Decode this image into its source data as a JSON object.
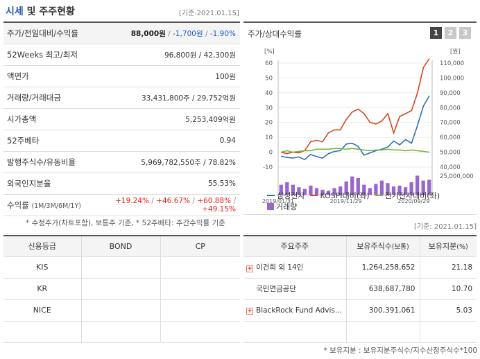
{
  "header": {
    "title_em": "시세",
    "title_rest": " 및 주주현황",
    "basedate": "[기준:2021.01.15]"
  },
  "info": {
    "rows": [
      {
        "key": "주가/전일대비/수익률"
      },
      {
        "key": "52Weeks 최고/최저",
        "value": "96,800원 / 42,300원"
      },
      {
        "key": "액면가",
        "value": "100원"
      },
      {
        "key": "거래량/거래대금",
        "value": "33,431,800주 / 29,752억원"
      },
      {
        "key": "시가총액",
        "value": "5,253,409억원"
      },
      {
        "key": "52주베타",
        "value": "0.94"
      },
      {
        "key": "발행주식수/유동비율",
        "value": "5,969,782,550주 / 78.82%"
      },
      {
        "key": "외국인지분율",
        "value": "55.53%"
      },
      {
        "key": "수익률",
        "key_small": "(1M/3M/6M/1Y)"
      }
    ],
    "price": "88,000원",
    "change": "-1,700원",
    "change_rate": "-1.90%",
    "returns": [
      "+19.24%",
      "+46.67%",
      "+60.88%",
      "+49.15%"
    ],
    "slash": " / "
  },
  "chart_panel": {
    "title": "주가/상대수익률",
    "pages": [
      "1",
      "2",
      "3"
    ],
    "active_page": "1"
  },
  "chart_data": {
    "type": "line",
    "left_unit": "[%]",
    "right_unit": "[원]",
    "left_ticks": [
      60,
      50,
      40,
      30,
      20,
      10,
      0,
      -10
    ],
    "right_ticks": [
      "110,000",
      "100,000",
      "90,000",
      "80,000",
      "70,000",
      "60,000",
      "50,000",
      "40,000"
    ],
    "volume_tick": "25,000,000",
    "ylim_left": [
      -10,
      60
    ],
    "ylim_right": [
      40000,
      110000
    ],
    "x_tick_labels": [
      "2019/01/31",
      "2019/11/29",
      "2020/09/29"
    ],
    "x_tick_positions": [
      0,
      0.44,
      0.88
    ],
    "series": [
      {
        "name": "삼성전자",
        "axis": "right",
        "color": "#2a6ebd",
        "values": [
          47300,
          46500,
          46000,
          46800,
          45000,
          48500,
          47000,
          46000,
          49000,
          50500,
          51000,
          55500,
          56000,
          54000,
          48000,
          49500,
          51000,
          52000,
          53500,
          57500,
          55000,
          58500,
          56000,
          68000,
          81000,
          88000
        ]
      },
      {
        "name": "KOSPI대비(좌)",
        "axis": "left",
        "color": "#d2451e",
        "values": [
          0,
          -1,
          0,
          -0.5,
          1,
          7,
          8,
          7,
          13,
          15,
          15,
          22,
          27,
          29,
          26,
          20,
          19,
          21,
          26,
          13,
          24,
          26,
          28,
          40,
          57,
          63
        ]
      },
      {
        "name": "전기전자대비(좌)",
        "axis": "left",
        "color": "#74b83a",
        "values": [
          0,
          1,
          0,
          0.5,
          1,
          1,
          2,
          2,
          2,
          2.5,
          2.5,
          2,
          2.5,
          2,
          1.5,
          1,
          1.5,
          1.5,
          2,
          1.5,
          1.5,
          1,
          1.5,
          1,
          0.5,
          0
        ]
      }
    ],
    "volume": {
      "name": "거래량",
      "color": "#9966cc",
      "values": [
        12,
        15,
        12,
        9,
        7,
        11,
        8,
        6,
        5,
        8,
        10,
        16,
        22,
        20,
        12,
        8,
        13,
        17,
        14,
        10,
        11,
        9,
        15,
        23,
        17,
        18
      ],
      "max": 25
    },
    "legend": [
      "삼성전자",
      "KOSPI대비(좌)",
      "전기전자대비(좌)",
      "거래량"
    ]
  },
  "notes": "* 수정주가(차트포함), 보통주 기준, * 52주베타: 주간수익률 기준",
  "basedate_mid": "[기준: 2021.01.15]",
  "credit": {
    "headers": [
      "신용등급",
      "BOND",
      "CP"
    ],
    "rows": [
      [
        "KIS",
        "",
        ""
      ],
      [
        "KR",
        "",
        ""
      ],
      [
        "NICE",
        "",
        ""
      ],
      [
        "",
        "",
        ""
      ]
    ]
  },
  "holders": {
    "headers": {
      "name": "주요주주",
      "shares": "보유주식수",
      "shares_small": "(보통)",
      "ratio": "보유지분",
      "ratio_small": "(%)"
    },
    "rows": [
      {
        "name": "이건희 외 14인",
        "expand": true,
        "shares": "1,264,258,652",
        "ratio": "21.18"
      },
      {
        "name": "국민연금공단",
        "expand": false,
        "shares": "638,687,780",
        "ratio": "10.70"
      },
      {
        "name": "BlackRock Fund Advis...",
        "expand": true,
        "shares": "300,391,061",
        "ratio": "5.03"
      },
      {
        "name": "",
        "expand": false,
        "shares": "",
        "ratio": ""
      }
    ]
  },
  "footnote": "* 보유지분 : 보유지분주식수/지수산정주식수*100"
}
